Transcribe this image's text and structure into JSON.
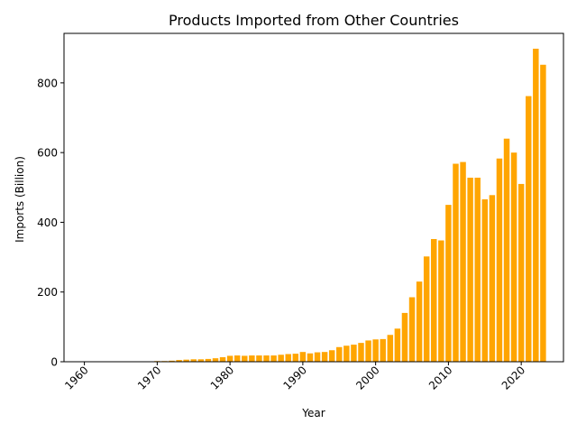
{
  "chart_data": {
    "type": "bar",
    "title": "Products Imported from Other Countries",
    "xlabel": "Year",
    "ylabel": "Imports (Billion)",
    "xlim": [
      1957.2,
      2025.8
    ],
    "ylim": [
      0,
      942
    ],
    "x_ticks": [
      1960,
      1970,
      1980,
      1990,
      2000,
      2010,
      2020
    ],
    "y_ticks": [
      0,
      200,
      400,
      600,
      800
    ],
    "grid": false,
    "legend": "none",
    "bar_color": "#ffa500",
    "series": [
      {
        "x": [
          1960,
          1961,
          1962,
          1963,
          1964,
          1965,
          1966,
          1967,
          1968,
          1969,
          1970,
          1971,
          1972,
          1973,
          1974,
          1975,
          1976,
          1977,
          1978,
          1979,
          1980,
          1981,
          1982,
          1983,
          1984,
          1985,
          1986,
          1987,
          1988,
          1989,
          1990,
          1991,
          1992,
          1993,
          1994,
          1995,
          1996,
          1997,
          1998,
          1999,
          2000,
          2001,
          2002,
          2003,
          2004,
          2005,
          2006,
          2007,
          2008,
          2009,
          2010,
          2011,
          2012,
          2013,
          2014,
          2015,
          2016,
          2017,
          2018,
          2019,
          2020,
          2021,
          2022,
          2023
        ],
        "values": [
          1,
          1,
          1,
          1,
          1,
          1,
          1,
          1,
          1,
          1,
          2,
          2,
          3,
          5,
          6,
          7,
          7,
          8,
          10,
          13,
          17,
          18,
          17,
          18,
          18,
          18,
          18,
          20,
          22,
          23,
          28,
          24,
          27,
          28,
          33,
          42,
          46,
          49,
          54,
          61,
          64,
          65,
          77,
          95,
          140,
          185,
          230,
          302,
          352,
          348,
          450,
          568,
          573,
          528,
          528,
          466,
          478,
          583,
          640,
          600,
          510,
          762,
          898,
          852
        ]
      }
    ]
  }
}
